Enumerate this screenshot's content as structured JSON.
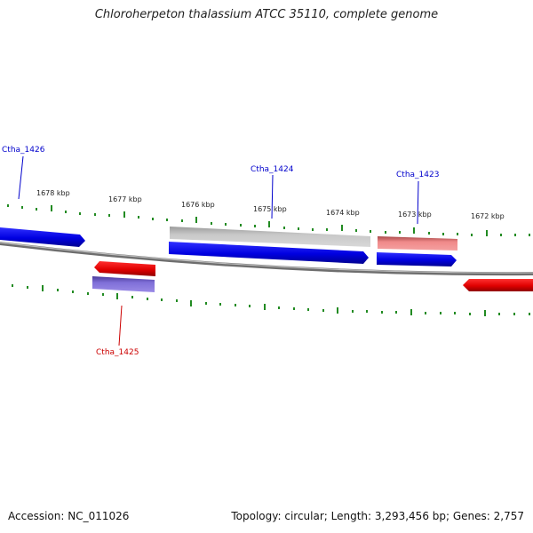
{
  "title": "Chloroherpeton thalassium ATCC 35110, complete genome",
  "footer": {
    "accession": "Accession: NC_011026",
    "summary": "Topology: circular; Length: 3,293,456 bp; Genes: 2,757"
  },
  "ruler": {
    "kbp_labels": [
      "1678 kbp",
      "1677 kbp",
      "1676 kbp",
      "1675 kbp",
      "1674 kbp",
      "1673 kbp",
      "1672 kbp"
    ]
  },
  "genes": [
    {
      "label": "Ctha_1426",
      "color": "#0000cc"
    },
    {
      "label": "Ctha_1424",
      "color": "#0000cc"
    },
    {
      "label": "Ctha_1423",
      "color": "#0000cc"
    },
    {
      "label": "Ctha_1425",
      "color": "#cc0000"
    }
  ],
  "colors": {
    "forward_cds": "#0000ee",
    "reverse_cds": "#ee0000",
    "forward_gene": "#b8b8b8",
    "reverse_gene": "#e88080",
    "reverse_misc": "#6a5acd",
    "backbone": "#7a7a7a",
    "tick": "#228b22"
  }
}
